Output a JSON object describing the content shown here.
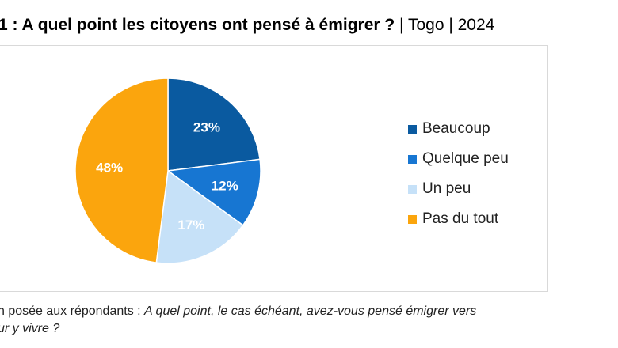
{
  "title": {
    "bold": "1 : A quel point les citoyens ont pensé à émigrer ?",
    "rest": " | Togo | 2024"
  },
  "chart_data": {
    "type": "pie",
    "categories": [
      "Beaucoup",
      "Quelque peu",
      "Un peu",
      "Pas du tout"
    ],
    "values": [
      23,
      12,
      17,
      48
    ],
    "labels": [
      "23%",
      "12%",
      "17%",
      "48%"
    ],
    "colors": [
      "#0a5aa0",
      "#1776d2",
      "#c6e1f8",
      "#fba50d"
    ],
    "label_colors": [
      "#ffffff",
      "#ffffff",
      "#ffffff",
      "#ffffff"
    ],
    "legend_position": "right"
  },
  "note": {
    "line1_plain": "n posée aux répondants : ",
    "line1_italic": "A quel point, le cas échéant, avez-vous pensé émigrer vers",
    "line2_italic": "ur y vivre ?"
  }
}
